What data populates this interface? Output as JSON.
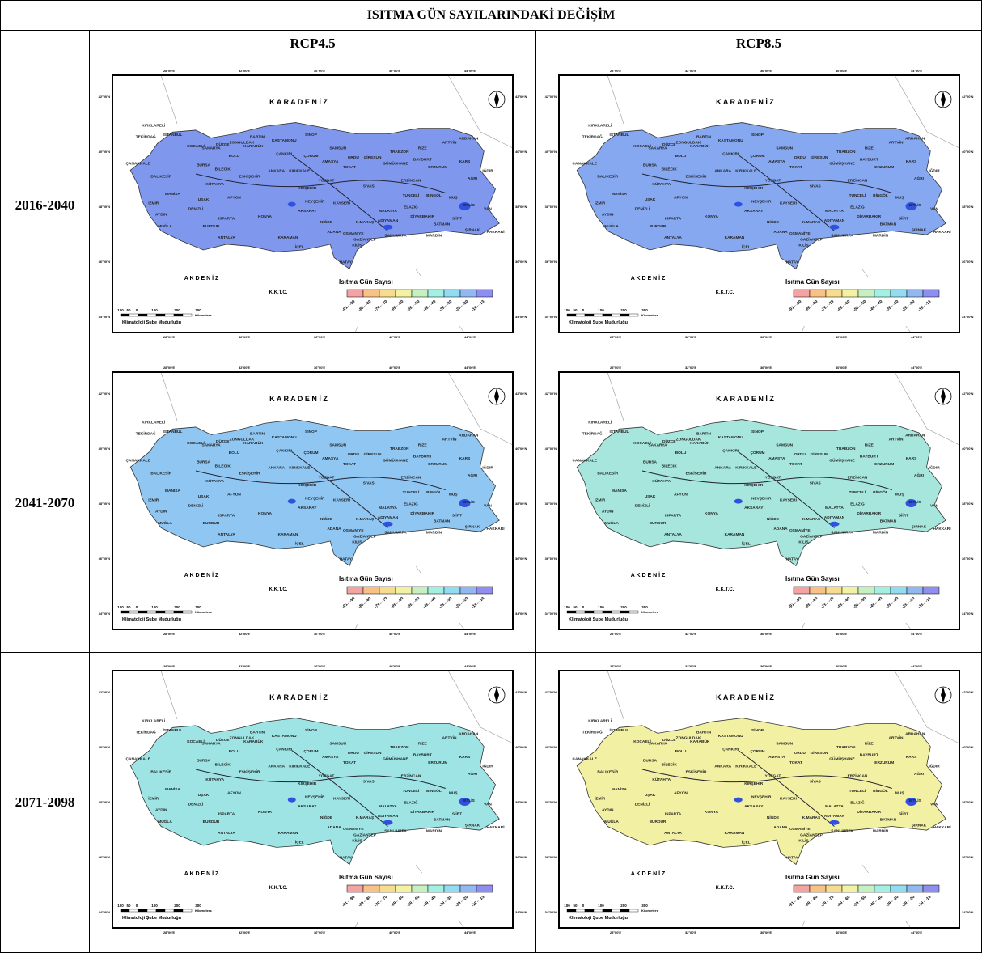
{
  "title": "ISITMA GÜN SAYILARINDAKİ DEĞİŞİM",
  "columns": [
    "RCP4.5",
    "RCP8.5"
  ],
  "rows": [
    {
      "period": "2016-2040",
      "maps": [
        {
          "color": "#7f98ee"
        },
        {
          "color": "#86a8f0"
        }
      ]
    },
    {
      "period": "2041-2070",
      "maps": [
        {
          "color": "#90c6f2"
        },
        {
          "color": "#a6e6dc"
        }
      ]
    },
    {
      "period": "2071-2098",
      "maps": [
        {
          "color": "#9ee4e4"
        },
        {
          "color": "#f2f0a2"
        }
      ]
    }
  ],
  "map": {
    "sea_north": "K  A  R  A     D  E  N  İ  Z",
    "sea_south": "A K D E N İ Z",
    "kktc": "K.K.T.C.",
    "legend_title": "Isıtma Gün Sayısı",
    "legend": [
      {
        "label": "-91 - -90",
        "color": "#f4a2a2"
      },
      {
        "label": "-89 - -80",
        "color": "#f8c286"
      },
      {
        "label": "-79 - -70",
        "color": "#f8dc8e"
      },
      {
        "label": "-69 - -60",
        "color": "#f2f2a2"
      },
      {
        "label": "-59 - -50",
        "color": "#c6f0c0"
      },
      {
        "label": "-49 - -40",
        "color": "#a2f0e2"
      },
      {
        "label": "-39 - -30",
        "color": "#92dcf2"
      },
      {
        "label": "-29 - -20",
        "color": "#92b8f2"
      },
      {
        "label": "-19 - -13",
        "color": "#8e8ef0"
      }
    ],
    "scale": [
      "100",
      "50",
      "0",
      "100",
      "200",
      "300"
    ],
    "scale_unit": "Kilometers",
    "credit": "Klimatoloji Şube Mudurluğu",
    "lat": [
      "42°00'N",
      "40°00'N",
      "38°00'N",
      "36°00'N",
      "34°00'N"
    ],
    "lon": [
      "28°00'E",
      "32°00'E",
      "36°00'E",
      "40°00'E",
      "44°00'E"
    ],
    "cities": [
      "KIRKLARELİ",
      "TEKİRDAĞ",
      "İSTANBUL",
      "KOCAELİ",
      "SAKARYA",
      "DÜZCE",
      "BOLU",
      "ZONGULDAK",
      "BARTIN",
      "KARABÜK",
      "KASTAMONU",
      "SİNOP",
      "SAMSUN",
      "ORDU",
      "GİRESUN",
      "TRABZON",
      "RİZE",
      "ARTVİN",
      "ARDAHAN",
      "KARS",
      "ERZURUM",
      "ÇANAKKALE",
      "BALIKESİR",
      "BURSA",
      "BİLECİK",
      "ESKİŞEHİR",
      "ANKARA",
      "KIRIKKALE",
      "ÇANKIRI",
      "ÇORUM",
      "AMASYA",
      "TOKAT",
      "YOZGAT",
      "SİVAS",
      "ERZİNCAN",
      "AĞRI",
      "IĞDIR",
      "KÜTAHYA",
      "MANİSA",
      "UŞAK",
      "AFYON",
      "KIRŞEHİR",
      "NEVŞEHİR",
      "KAYSERİ",
      "TUNCELİ",
      "BİNGÖL",
      "MUŞ",
      "BİTLİS",
      "VAN",
      "İZMİR",
      "AYDIN",
      "DENİZLİ",
      "AKSARAY",
      "NİĞDE",
      "MALATYA",
      "ELAZIĞ",
      "DİYARBAKIR",
      "BATMAN",
      "SİİRT",
      "ŞIRNAK",
      "HAKKARİ",
      "MUĞLA",
      "ISPARTA",
      "BURDUR",
      "ANTALYA",
      "KONYA",
      "KARAMAN",
      "İÇEL",
      "ADANA",
      "OSMANİYE",
      "K.MARAŞ",
      "ADIYAMAN",
      "GAZİANTEP",
      "KİLİS",
      "ŞANLIURFA",
      "MARDİN",
      "HATAY",
      "GÜMÜŞHANE",
      "BAYBURT"
    ]
  }
}
